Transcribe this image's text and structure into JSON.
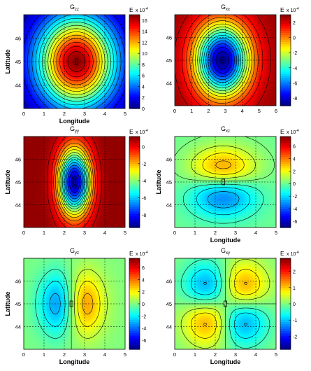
{
  "figure": {
    "background": "#ffffff"
  },
  "chart_data": [
    {
      "type": "heatmap",
      "title": "Gzz",
      "title_main": "G",
      "title_sub": "zz",
      "kind": "gzz",
      "xlabel": "Longitude",
      "ylabel": "Latitude",
      "xlim": [
        0,
        5
      ],
      "ylim": [
        43,
        47
      ],
      "xticks": [
        "0",
        "1",
        "2",
        "3",
        "4",
        "5"
      ],
      "yticks": [
        "44",
        "45",
        "46"
      ],
      "colorbar": {
        "unit_label": "E",
        "scale_label": "x 10",
        "scale_exp": "-4",
        "ticks": [
          "0",
          "2",
          "4",
          "6",
          "8",
          "10",
          "12",
          "14",
          "16"
        ],
        "range": [
          0,
          17
        ]
      },
      "center_marker": [
        2.5,
        45
      ]
    },
    {
      "type": "heatmap",
      "title": "Gxx",
      "title_main": "G",
      "title_sub": "xx",
      "kind": "gxx",
      "xlabel": "",
      "ylabel": "",
      "xlim": [
        0,
        6
      ],
      "ylim": [
        43,
        47
      ],
      "xticks": [
        "0",
        "1",
        "2",
        "3",
        "4",
        "5",
        "6"
      ],
      "yticks": [
        "44",
        "45",
        "46"
      ],
      "colorbar": {
        "unit_label": "E",
        "scale_label": "x 10",
        "scale_exp": "-4",
        "ticks": [
          "-8",
          "-6",
          "-4",
          "-2",
          "0",
          "2"
        ],
        "range": [
          -9,
          3
        ]
      },
      "center_marker": [
        2.5,
        45
      ]
    },
    {
      "type": "heatmap",
      "title": "Gyy",
      "title_main": "G",
      "title_sub": "yy",
      "kind": "gyy",
      "xlabel": "",
      "ylabel": "Latitude",
      "xlim": [
        0,
        5
      ],
      "ylim": [
        43,
        47
      ],
      "xticks": [
        "0",
        "1",
        "2",
        "3",
        "4",
        "5"
      ],
      "yticks": [
        "44",
        "45",
        "46"
      ],
      "colorbar": {
        "unit_label": "E",
        "scale_label": "x 10",
        "scale_exp": "-4",
        "ticks": [
          "-8",
          "-6",
          "-4",
          "-2",
          "0"
        ],
        "range": [
          -9.5,
          1.2
        ]
      },
      "center_marker": [
        2.5,
        45
      ]
    },
    {
      "type": "heatmap",
      "title": "Gxz",
      "title_main": "G",
      "title_sub": "xz",
      "kind": "gxz",
      "xlabel": "Longitude",
      "ylabel": "Latitude",
      "xlim": [
        0,
        5
      ],
      "ylim": [
        43,
        47
      ],
      "xticks": [
        "0",
        "1",
        "2",
        "3",
        "4",
        "5"
      ],
      "yticks": [
        "44",
        "45",
        "46"
      ],
      "colorbar": {
        "unit_label": "E",
        "scale_label": "x 10",
        "scale_exp": "-4",
        "ticks": [
          "-6",
          "-4",
          "-2",
          "0",
          "2",
          "4",
          "6"
        ],
        "range": [
          -7,
          7.5
        ]
      },
      "center_marker": [
        2.5,
        45
      ]
    },
    {
      "type": "heatmap",
      "title": "Gyz",
      "title_main": "G",
      "title_sub": "yz",
      "kind": "gyz",
      "xlabel": "Longitude",
      "ylabel": "Latitude",
      "xlim": [
        0,
        5
      ],
      "ylim": [
        43,
        47
      ],
      "xticks": [
        "0",
        "1",
        "2",
        "3",
        "4",
        "5"
      ],
      "yticks": [
        "44",
        "45",
        "46"
      ],
      "colorbar": {
        "unit_label": "E",
        "scale_label": "x 10",
        "scale_exp": "-4",
        "ticks": [
          "-6",
          "-4",
          "-2",
          "0",
          "2",
          "4",
          "6"
        ],
        "range": [
          -7.5,
          7.5
        ]
      },
      "center_marker": [
        2.5,
        45
      ]
    },
    {
      "type": "heatmap",
      "title": "Gxy",
      "title_main": "G",
      "title_sub": "xy",
      "kind": "gxy",
      "xlabel": "Longitude",
      "ylabel": "",
      "xlim": [
        0,
        5
      ],
      "ylim": [
        43,
        47
      ],
      "xticks": [
        "0",
        "1",
        "2",
        "3",
        "4",
        "5"
      ],
      "yticks": [
        "44",
        "45",
        "46"
      ],
      "colorbar": {
        "unit_label": "E",
        "scale_label": "x 10",
        "scale_exp": "-4",
        "ticks": [
          "-2",
          "-1",
          "0",
          "1",
          "2"
        ],
        "range": [
          -2.8,
          2.8
        ]
      },
      "center_marker": [
        2.5,
        45
      ]
    }
  ]
}
